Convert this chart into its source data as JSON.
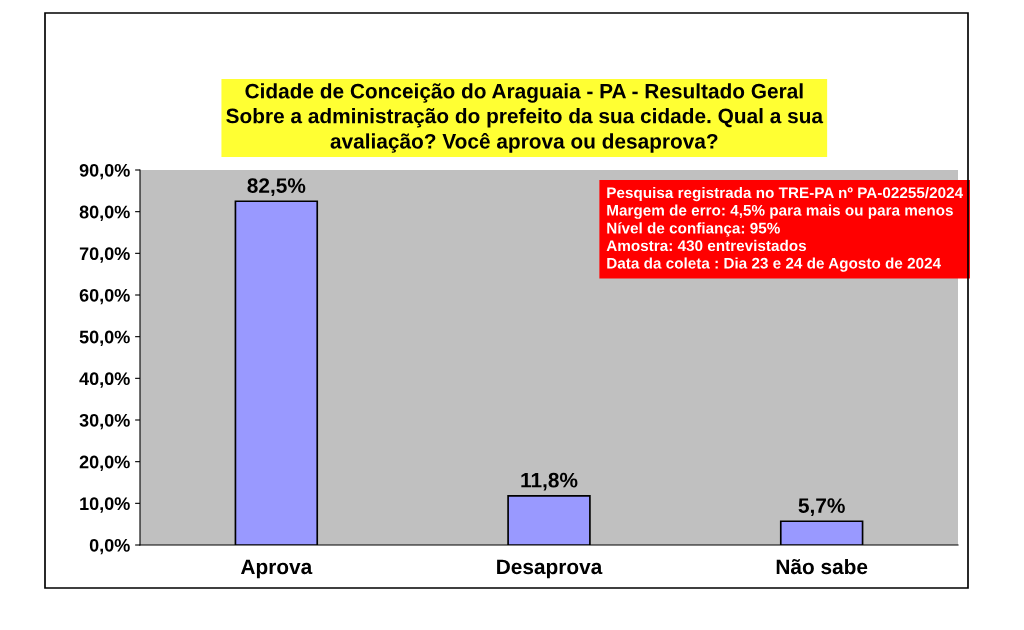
{
  "chart_data": {
    "type": "bar",
    "title": "Cidade de Conceição do Araguaia - PA - Resultado Geral\nSobre a administração do prefeito da sua cidade. Qual a sua\navaliação? Você aprova ou desaprova?",
    "categories": [
      "Aprova",
      "Desaprova",
      "Não sabe"
    ],
    "values": [
      82.5,
      11.8,
      5.7
    ],
    "value_labels": [
      "82,5%",
      "11,8%",
      "5,7%"
    ],
    "color": "#9999ff",
    "ylim": [
      0,
      90
    ],
    "yticks": [
      {
        "value": 0,
        "label": "0,0%"
      },
      {
        "value": 10,
        "label": "10,0%"
      },
      {
        "value": 20,
        "label": "20,0%"
      },
      {
        "value": 30,
        "label": "30,0%"
      },
      {
        "value": 40,
        "label": "40,0%"
      },
      {
        "value": 50,
        "label": "50,0%"
      },
      {
        "value": 60,
        "label": "60,0%"
      },
      {
        "value": 70,
        "label": "70,0%"
      },
      {
        "value": 80,
        "label": "80,0%"
      },
      {
        "value": 90,
        "label": "90,0%"
      }
    ],
    "grid": false,
    "annotations": [
      "Pesquisa registrada no TRE-PA nº PA-02255/2024\nMargem de erro: 4,5% para mais ou para menos\nNível de confiança: 95%\nAmostra: 430 entrevistados\nData da coleta : Dia 23 e 24 de Agosto de 2024"
    ]
  }
}
